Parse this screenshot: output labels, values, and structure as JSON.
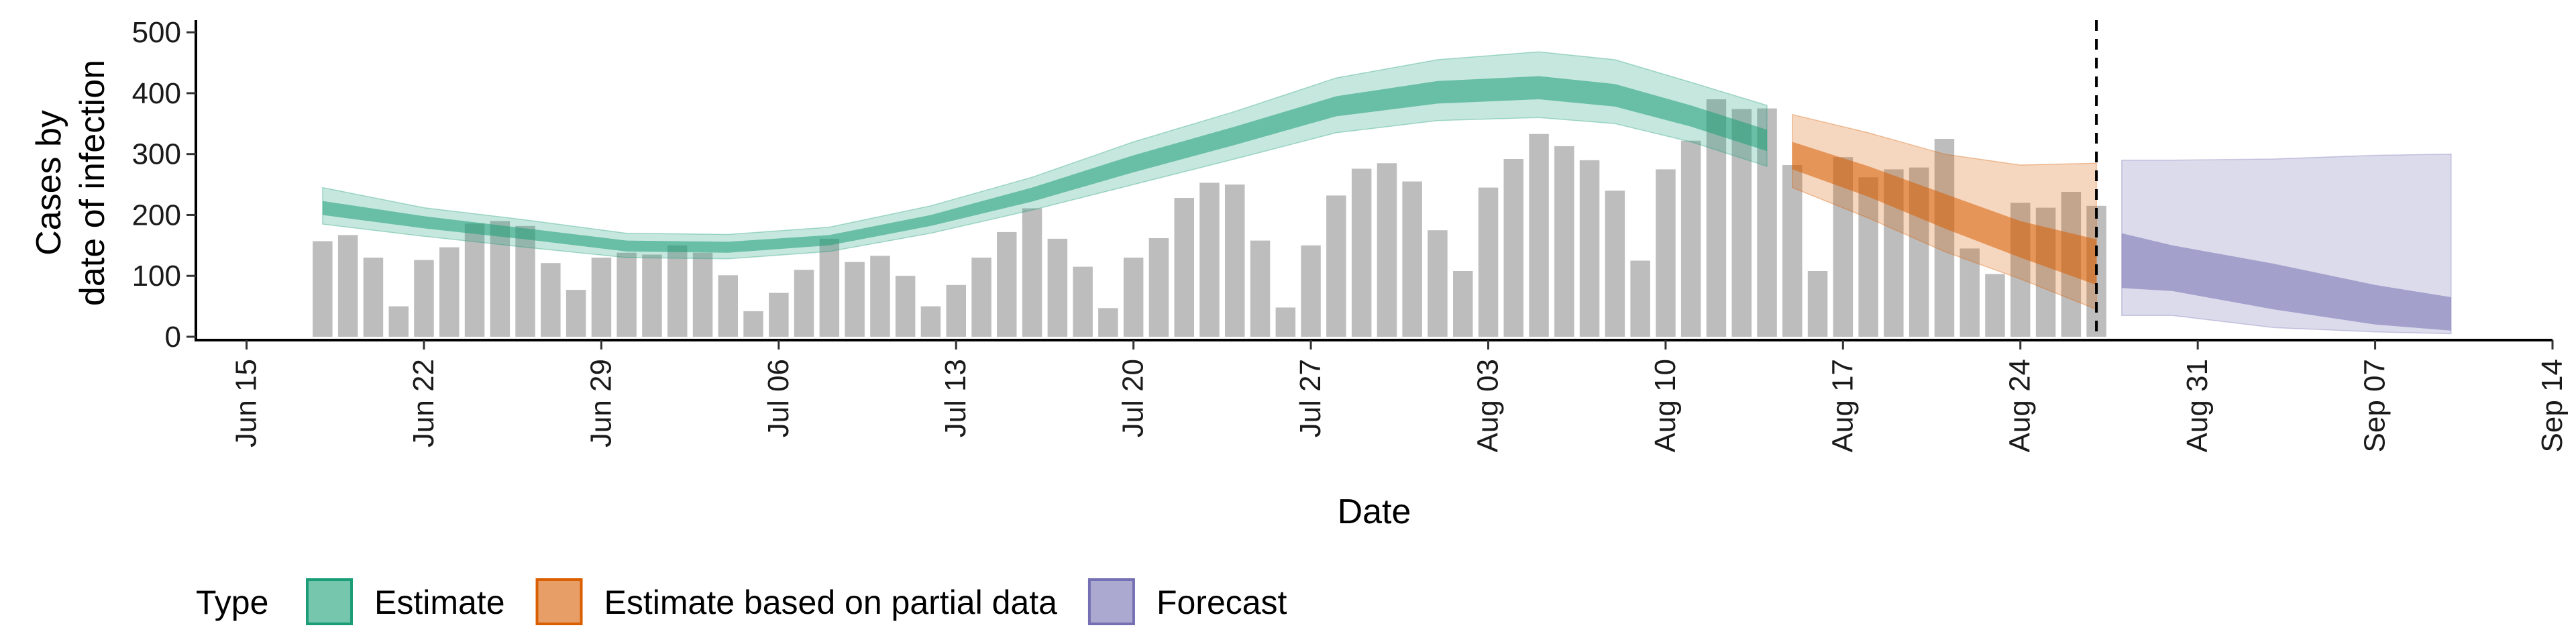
{
  "chart_data": {
    "type": "bar",
    "xlabel": "Date",
    "ylabel_lines": [
      "Cases by",
      "date of infection"
    ],
    "ylim": [
      0,
      520
    ],
    "yticks": [
      0,
      100,
      200,
      300,
      400,
      500
    ],
    "xlim": [
      "2020-06-13",
      "2020-09-14"
    ],
    "xticks": [
      {
        "date": "2020-06-15",
        "label": "Jun 15"
      },
      {
        "date": "2020-06-22",
        "label": "Jun 22"
      },
      {
        "date": "2020-06-29",
        "label": "Jun 29"
      },
      {
        "date": "2020-07-06",
        "label": "Jul 06"
      },
      {
        "date": "2020-07-13",
        "label": "Jul 13"
      },
      {
        "date": "2020-07-20",
        "label": "Jul 20"
      },
      {
        "date": "2020-07-27",
        "label": "Jul 27"
      },
      {
        "date": "2020-08-03",
        "label": "Aug 03"
      },
      {
        "date": "2020-08-10",
        "label": "Aug 10"
      },
      {
        "date": "2020-08-17",
        "label": "Aug 17"
      },
      {
        "date": "2020-08-24",
        "label": "Aug 24"
      },
      {
        "date": "2020-08-31",
        "label": "Aug 31"
      },
      {
        "date": "2020-09-07",
        "label": "Sep 07"
      },
      {
        "date": "2020-09-14",
        "label": "Sep 14"
      }
    ],
    "bars": {
      "start_date": "2020-06-18",
      "color": "#bdbdbd",
      "values": [
        157,
        167,
        130,
        50,
        126,
        147,
        186,
        190,
        182,
        121,
        77,
        130,
        138,
        135,
        150,
        138,
        101,
        42,
        72,
        110,
        161,
        123,
        133,
        100,
        50,
        85,
        130,
        172,
        211,
        161,
        115,
        47,
        130,
        162,
        228,
        253,
        250,
        158,
        48,
        150,
        232,
        276,
        285,
        255,
        175,
        108,
        245,
        292,
        333,
        313,
        290,
        240,
        125,
        275,
        322,
        390,
        374,
        375,
        282,
        108,
        295,
        262,
        275,
        278,
        325,
        145,
        103,
        220,
        212,
        238,
        215
      ]
    },
    "reference_line_date": "2020-08-27",
    "series": [
      {
        "name": "Estimate",
        "color": "#1b9e77",
        "points": [
          {
            "date": "2020-06-18",
            "lower90": 185,
            "lower50": 200,
            "upper50": 223,
            "upper90": 245
          },
          {
            "date": "2020-06-22",
            "lower90": 165,
            "lower50": 178,
            "upper50": 198,
            "upper90": 212
          },
          {
            "date": "2020-06-26",
            "lower90": 147,
            "lower50": 160,
            "upper50": 178,
            "upper90": 192
          },
          {
            "date": "2020-06-30",
            "lower90": 130,
            "lower50": 140,
            "upper50": 158,
            "upper90": 170
          },
          {
            "date": "2020-07-04",
            "lower90": 128,
            "lower50": 138,
            "upper50": 156,
            "upper90": 168
          },
          {
            "date": "2020-07-08",
            "lower90": 140,
            "lower50": 150,
            "upper50": 167,
            "upper90": 180
          },
          {
            "date": "2020-07-12",
            "lower90": 170,
            "lower50": 182,
            "upper50": 200,
            "upper90": 215
          },
          {
            "date": "2020-07-16",
            "lower90": 208,
            "lower50": 222,
            "upper50": 245,
            "upper90": 262
          },
          {
            "date": "2020-07-20",
            "lower90": 250,
            "lower50": 270,
            "upper50": 298,
            "upper90": 320
          },
          {
            "date": "2020-07-24",
            "lower90": 292,
            "lower50": 315,
            "upper50": 345,
            "upper90": 370
          },
          {
            "date": "2020-07-28",
            "lower90": 335,
            "lower50": 362,
            "upper50": 395,
            "upper90": 425
          },
          {
            "date": "2020-08-01",
            "lower90": 355,
            "lower50": 383,
            "upper50": 420,
            "upper90": 455
          },
          {
            "date": "2020-08-05",
            "lower90": 360,
            "lower50": 390,
            "upper50": 428,
            "upper90": 468
          },
          {
            "date": "2020-08-08",
            "lower90": 350,
            "lower50": 378,
            "upper50": 415,
            "upper90": 455
          },
          {
            "date": "2020-08-11",
            "lower90": 320,
            "lower50": 345,
            "upper50": 380,
            "upper90": 418
          },
          {
            "date": "2020-08-14",
            "lower90": 280,
            "lower50": 305,
            "upper50": 340,
            "upper90": 380
          }
        ]
      },
      {
        "name": "Estimate based on partial data",
        "color": "#d95f02",
        "points": [
          {
            "date": "2020-08-15",
            "lower90": 245,
            "lower50": 275,
            "upper50": 320,
            "upper90": 365
          },
          {
            "date": "2020-08-18",
            "lower90": 195,
            "lower50": 230,
            "upper50": 280,
            "upper90": 335
          },
          {
            "date": "2020-08-21",
            "lower90": 140,
            "lower50": 178,
            "upper50": 235,
            "upper90": 300
          },
          {
            "date": "2020-08-24",
            "lower90": 95,
            "lower50": 130,
            "upper50": 190,
            "upper90": 282
          },
          {
            "date": "2020-08-27",
            "lower90": 45,
            "lower50": 85,
            "upper50": 160,
            "upper90": 285
          }
        ]
      },
      {
        "name": "Forecast",
        "color": "#7570b3",
        "points": [
          {
            "date": "2020-08-28",
            "lower90": 35,
            "lower50": 80,
            "upper50": 170,
            "upper90": 290
          },
          {
            "date": "2020-08-30",
            "lower90": 35,
            "lower50": 75,
            "upper50": 150,
            "upper90": 290
          },
          {
            "date": "2020-09-03",
            "lower90": 15,
            "lower50": 45,
            "upper50": 120,
            "upper90": 292
          },
          {
            "date": "2020-09-07",
            "lower90": 8,
            "lower50": 20,
            "upper50": 85,
            "upper90": 298
          },
          {
            "date": "2020-09-10",
            "lower90": 5,
            "lower50": 10,
            "upper50": 65,
            "upper90": 300
          }
        ]
      }
    ],
    "legend": {
      "title": "Type",
      "position": "bottom",
      "items": [
        "Estimate",
        "Estimate based on partial data",
        "Forecast"
      ]
    }
  }
}
